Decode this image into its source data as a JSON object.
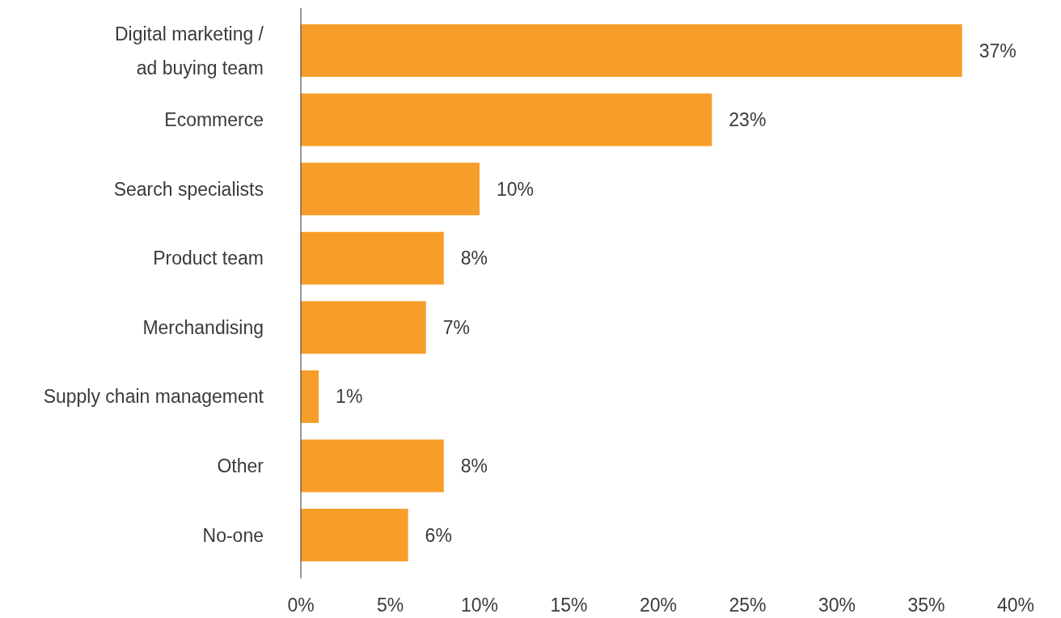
{
  "chart_data": {
    "type": "bar",
    "orientation": "horizontal",
    "categories": [
      "Digital marketing /\nad buying team",
      "Ecommerce",
      "Search specialists",
      "Product team",
      "Merchandising",
      "Supply chain management",
      "Other",
      "No-one"
    ],
    "values": [
      37,
      23,
      10,
      8,
      7,
      1,
      8,
      6
    ],
    "color": "#f79d2a",
    "xlim": [
      0,
      40
    ],
    "xticks": [
      {
        "value": 0,
        "label": "0%"
      },
      {
        "value": 5,
        "label": "5%"
      },
      {
        "value": 10,
        "label": "10%"
      },
      {
        "value": 15,
        "label": "15%"
      },
      {
        "value": 20,
        "label": "20%"
      },
      {
        "value": 25,
        "label": "25%"
      },
      {
        "value": 30,
        "label": "30%"
      },
      {
        "value": 35,
        "label": "35%"
      },
      {
        "value": 40,
        "label": "40%"
      }
    ],
    "value_labels": [
      "37%",
      "23%",
      "10%",
      "8%",
      "7%",
      "1%",
      "8%",
      "6%"
    ],
    "data_labels": false
  }
}
